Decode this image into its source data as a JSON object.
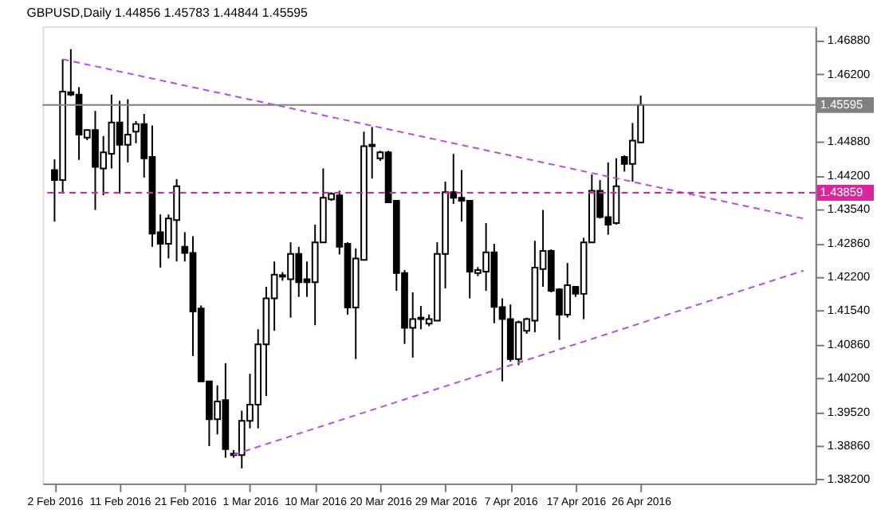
{
  "chart_data": {
    "type": "candlestick",
    "title": "GBPUSD,Daily  1.44856 1.45783 1.44844 1.45595",
    "categories": [
      "2 Feb 2016",
      null,
      null,
      null,
      null,
      null,
      null,
      null,
      "11 Feb 2016",
      null,
      null,
      null,
      null,
      null,
      null,
      null,
      "21 Feb 2016",
      null,
      null,
      null,
      null,
      null,
      null,
      null,
      "1 Mar 2016",
      null,
      null,
      null,
      null,
      null,
      null,
      null,
      "10 Mar 2016",
      null,
      null,
      null,
      null,
      null,
      null,
      null,
      "20 Mar 2016",
      null,
      null,
      null,
      null,
      null,
      null,
      null,
      "29 Mar 2016",
      null,
      null,
      null,
      null,
      null,
      null,
      null,
      "7 Apr 2016",
      null,
      null,
      null,
      null,
      null,
      null,
      null,
      "17 Apr 2016",
      null,
      null,
      null,
      null,
      null,
      null,
      null,
      "26 Apr 2016",
      null,
      null,
      null,
      null,
      null,
      null,
      null,
      null,
      null,
      null,
      null,
      null,
      null,
      null,
      null,
      null,
      null,
      null,
      null,
      null
    ],
    "ohlc": [
      [
        1.4431,
        1.4452,
        1.4329,
        1.4411
      ],
      [
        1.4411,
        1.465,
        1.4387,
        1.4586
      ],
      [
        1.4585,
        1.467,
        1.4577,
        1.458
      ],
      [
        1.458,
        1.4595,
        1.4451,
        1.4501
      ],
      [
        1.4495,
        1.4511,
        1.449,
        1.451
      ],
      [
        1.451,
        1.4548,
        1.4352,
        1.4437
      ],
      [
        1.4434,
        1.4498,
        1.4381,
        1.4466
      ],
      [
        1.4463,
        1.458,
        1.4434,
        1.4525
      ],
      [
        1.4525,
        1.4568,
        1.4384,
        1.4481
      ],
      [
        1.4481,
        1.4571,
        1.4446,
        1.4501
      ],
      [
        1.4507,
        1.4528,
        1.4484,
        1.4522
      ],
      [
        1.4522,
        1.4542,
        1.4416,
        1.4454
      ],
      [
        1.4457,
        1.4519,
        1.4279,
        1.4305
      ],
      [
        1.4308,
        1.4343,
        1.4238,
        1.4285
      ],
      [
        1.4285,
        1.4343,
        1.4256,
        1.4335
      ],
      [
        1.4332,
        1.4413,
        1.425,
        1.4399
      ],
      [
        1.4279,
        1.4308,
        1.425,
        1.4267
      ],
      [
        1.4267,
        1.43,
        1.4063,
        1.4151
      ],
      [
        1.4157,
        1.4163,
        1.4013,
        1.4013
      ],
      [
        1.4013,
        1.4013,
        1.3885,
        1.3938
      ],
      [
        1.3938,
        1.4005,
        1.3908,
        1.3973
      ],
      [
        1.3976,
        1.4049,
        1.3862,
        1.3879
      ],
      [
        1.387,
        1.3877,
        1.3862,
        1.3867
      ],
      [
        1.3867,
        1.3955,
        1.3841,
        1.3935
      ],
      [
        1.3935,
        1.4028,
        1.392,
        1.3967
      ],
      [
        1.3967,
        1.4116,
        1.392,
        1.4086
      ],
      [
        1.4086,
        1.42,
        1.3984,
        1.4177
      ],
      [
        1.4177,
        1.425,
        1.4113,
        1.4224
      ],
      [
        1.4223,
        1.4229,
        1.4212,
        1.422
      ],
      [
        1.4215,
        1.4288,
        1.4139,
        1.4265
      ],
      [
        1.4265,
        1.4279,
        1.418,
        1.4209
      ],
      [
        1.4215,
        1.425,
        1.418,
        1.4209
      ],
      [
        1.4209,
        1.4323,
        1.4124,
        1.4288
      ],
      [
        1.4288,
        1.4434,
        1.4288,
        1.4376
      ],
      [
        1.4373,
        1.4387,
        1.437,
        1.4384
      ],
      [
        1.4381,
        1.439,
        1.4264,
        1.4279
      ],
      [
        1.4285,
        1.4288,
        1.4145,
        1.4159
      ],
      [
        1.4159,
        1.4276,
        1.4057,
        1.4256
      ],
      [
        1.4253,
        1.4507,
        1.4253,
        1.4478
      ],
      [
        1.4478,
        1.4516,
        1.4414,
        1.4481
      ],
      [
        1.4454,
        1.4469,
        1.4449,
        1.4466
      ],
      [
        1.4466,
        1.4469,
        1.4367,
        1.4367
      ],
      [
        1.437,
        1.437,
        1.4192,
        1.4227
      ],
      [
        1.4227,
        1.4233,
        1.4087,
        1.4119
      ],
      [
        1.4119,
        1.4189,
        1.406,
        1.4136
      ],
      [
        1.4136,
        1.4162,
        1.4116,
        1.4139
      ],
      [
        1.4127,
        1.4145,
        1.4122,
        1.4136
      ],
      [
        1.4133,
        1.4288,
        1.4133,
        1.4265
      ],
      [
        1.4265,
        1.4408,
        1.4197,
        1.4387
      ],
      [
        1.4387,
        1.4463,
        1.4364,
        1.4376
      ],
      [
        1.4376,
        1.4431,
        1.4329,
        1.437
      ],
      [
        1.437,
        1.437,
        1.4177,
        1.423
      ],
      [
        1.4227,
        1.4239,
        1.4221,
        1.4233
      ],
      [
        1.423,
        1.4326,
        1.4192,
        1.4268
      ],
      [
        1.4268,
        1.4285,
        1.4128,
        1.416
      ],
      [
        1.416,
        1.4177,
        1.4013,
        1.4136
      ],
      [
        1.4136,
        1.4165,
        1.4052,
        1.4057
      ],
      [
        1.4057,
        1.4133,
        1.4045,
        1.413
      ],
      [
        1.4113,
        1.4139,
        1.4107,
        1.4136
      ],
      [
        1.4133,
        1.4291,
        1.411,
        1.4238
      ],
      [
        1.4235,
        1.4352,
        1.42,
        1.4271
      ],
      [
        1.4271,
        1.4274,
        1.4189,
        1.4192
      ],
      [
        1.4195,
        1.4197,
        1.4095,
        1.4145
      ],
      [
        1.4145,
        1.4247,
        1.4139,
        1.4203
      ],
      [
        1.42,
        1.42,
        1.418,
        1.4186
      ],
      [
        1.4186,
        1.4297,
        1.4136,
        1.4288
      ],
      [
        1.4288,
        1.4422,
        1.4288,
        1.439
      ],
      [
        1.439,
        1.4411,
        1.4335,
        1.4338
      ],
      [
        1.4338,
        1.4446,
        1.4303,
        1.4323
      ],
      [
        1.4326,
        1.4454,
        1.4323,
        1.4399
      ],
      [
        1.4457,
        1.446,
        1.4428,
        1.4443
      ],
      [
        1.4443,
        1.4524,
        1.4408,
        1.4489
      ],
      [
        1.44856,
        1.45783,
        1.44844,
        1.45595
      ],
      null,
      null,
      null,
      null,
      null,
      null,
      null,
      null,
      null,
      null,
      null,
      null,
      null,
      null,
      null,
      null,
      null,
      null,
      null,
      null
    ],
    "series": [
      {
        "type": "line",
        "color": "#b04fe0",
        "line_style": "dashed",
        "values": [
          null,
          1.465,
          null,
          null,
          null,
          null,
          null,
          null,
          null,
          null,
          null,
          null,
          null,
          null,
          null,
          null,
          null,
          null,
          null,
          null,
          null,
          null,
          null,
          null,
          null,
          null,
          null,
          null,
          null,
          null,
          null,
          null,
          null,
          null,
          null,
          null,
          null,
          null,
          null,
          null,
          null,
          null,
          null,
          null,
          null,
          null,
          null,
          null,
          null,
          null,
          null,
          null,
          null,
          null,
          null,
          null,
          null,
          null,
          null,
          null,
          null,
          null,
          null,
          null,
          null,
          null,
          null,
          null,
          null,
          null,
          null,
          null,
          null,
          null,
          null,
          null,
          null,
          null,
          null,
          null,
          null,
          null,
          null,
          null,
          null,
          null,
          null,
          null,
          null,
          null,
          null,
          null,
          1.4335
        ]
      },
      {
        "type": "line",
        "color": "#b04fe0",
        "line_style": "dashed",
        "values": [
          null,
          null,
          null,
          null,
          null,
          null,
          null,
          null,
          null,
          null,
          null,
          null,
          null,
          null,
          null,
          null,
          null,
          null,
          null,
          null,
          null,
          null,
          1.3868,
          null,
          null,
          null,
          null,
          null,
          null,
          null,
          null,
          null,
          null,
          null,
          null,
          null,
          null,
          null,
          null,
          null,
          null,
          null,
          null,
          null,
          null,
          null,
          null,
          null,
          null,
          null,
          null,
          null,
          null,
          null,
          null,
          null,
          null,
          null,
          null,
          null,
          null,
          null,
          null,
          null,
          null,
          null,
          null,
          null,
          null,
          null,
          null,
          null,
          null,
          null,
          null,
          null,
          null,
          null,
          null,
          null,
          null,
          null,
          null,
          null,
          null,
          null,
          null,
          null,
          null,
          null,
          null,
          null,
          1.4232
        ]
      }
    ],
    "ref_lines": [
      {
        "axis": "y",
        "value": 1.45595,
        "label": "1.45595",
        "color": "#808080",
        "line_style": "solid"
      },
      {
        "axis": "y",
        "value": 1.43859,
        "label": "1.43859",
        "color": "#d6289b",
        "line_style": "dashed"
      }
    ],
    "ylim": [
      1.3811,
      1.4715
    ],
    "yticks": [
      {
        "value": 1.4688,
        "label": "1.46880"
      },
      {
        "value": 1.462,
        "label": "1.46200"
      },
      {
        "value": 1.4488,
        "label": "1.44880"
      },
      {
        "value": 1.442,
        "label": "1.44200"
      },
      {
        "value": 1.4354,
        "label": "1.43540"
      },
      {
        "value": 1.4286,
        "label": "1.42860"
      },
      {
        "value": 1.422,
        "label": "1.42200"
      },
      {
        "value": 1.4154,
        "label": "1.41540"
      },
      {
        "value": 1.4086,
        "label": "1.40860"
      },
      {
        "value": 1.402,
        "label": "1.40200"
      },
      {
        "value": 1.3952,
        "label": "1.39520"
      },
      {
        "value": 1.3886,
        "label": "1.38860"
      },
      {
        "value": 1.382,
        "label": "1.38200"
      }
    ],
    "grid": false
  }
}
